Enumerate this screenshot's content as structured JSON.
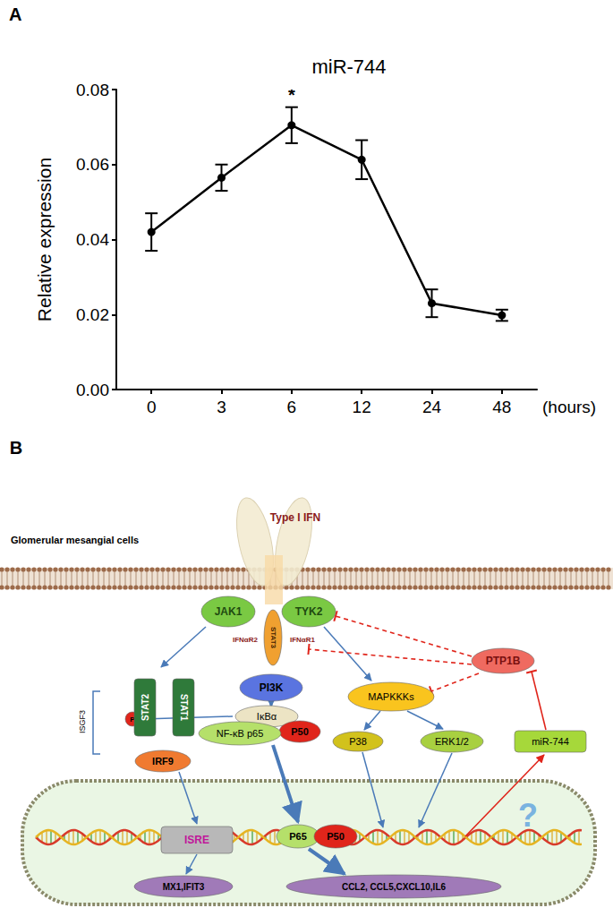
{
  "chart_data": {
    "type": "line",
    "panel_label": "A",
    "title": "miR-744",
    "y_label": "Relative expression",
    "x_label": "(hours)",
    "categories": [
      "0",
      "3",
      "6",
      "12",
      "24",
      "48"
    ],
    "values": [
      0.042,
      0.0565,
      0.0705,
      0.0613,
      0.023,
      0.0198
    ],
    "errors": [
      0.005,
      0.0035,
      0.0048,
      0.0052,
      0.0037,
      0.0015
    ],
    "color": "#000000",
    "marker": "circle",
    "ylim": [
      0,
      0.08
    ],
    "yticks": [
      {
        "value": 0,
        "label": "0.00"
      },
      {
        "value": 0.02,
        "label": "0.02"
      },
      {
        "value": 0.04,
        "label": "0.04"
      },
      {
        "value": 0.06,
        "label": "0.06"
      },
      {
        "value": 0.08,
        "label": "0.08"
      }
    ],
    "grid": false,
    "annotations": [
      {
        "text": "*",
        "category": "6"
      }
    ]
  },
  "diagram": {
    "panel_label": "B",
    "title": "Glomerular mesangial cells",
    "nodes": [
      "Type I IFN",
      "JAK1",
      "TYK2",
      "IFNαR2",
      "STAT3",
      "IFNαR1",
      "PTP1B",
      "PI3K",
      "P",
      "IκBα",
      "P50",
      "NF-κB p65",
      "MAPKKKs",
      "P38",
      "ERK1/2",
      "miR-744",
      "STAT2",
      "STAT1",
      "IRF9",
      "ISGF3",
      "ISRE",
      "P65",
      "P50",
      "MX1,IFIT3",
      "CCL2, CCL5,CXCL10,IL6",
      "?"
    ]
  }
}
